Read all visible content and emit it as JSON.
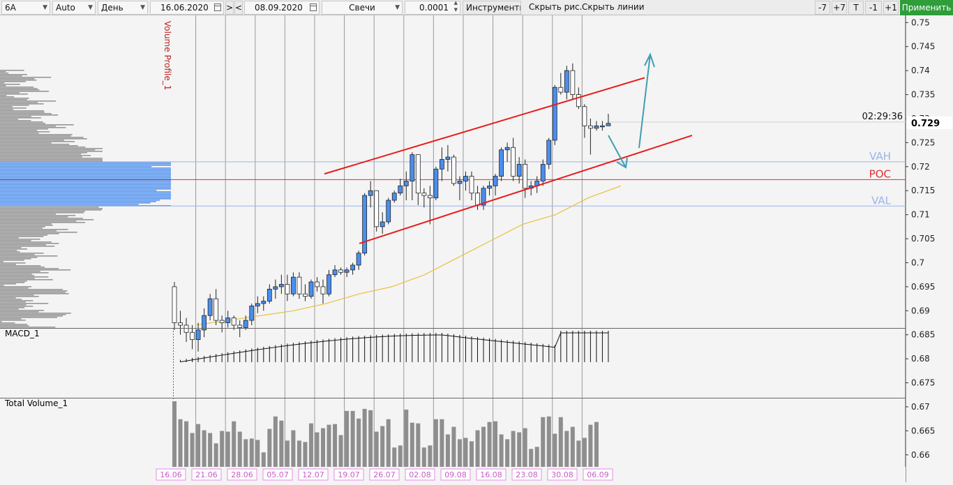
{
  "toolbar": {
    "symbol": "6A",
    "scale": "Auto",
    "period": "День",
    "date_from": "16.06.2020",
    "prev_btn": ">",
    "next_btn": "<",
    "date_to": "08.09.2020",
    "chart_style": "Свечи",
    "tick_size": "0.0001",
    "tools": "Инструменты",
    "hide_drawings": "Скрыть рис.",
    "hide_lines": "Скрыть линии",
    "btn_m7": "-7",
    "btn_p7": "+7",
    "btn_t": "T",
    "btn_m1": "-1",
    "btn_p1": "+1",
    "apply": "Применить"
  },
  "chart_data": {
    "type": "candlestick",
    "symbol": "6A",
    "timeframe": "День",
    "y_range": [
      0.6575,
      0.7515
    ],
    "y_ticks": [
      "0.75",
      "0.745",
      "0.74",
      "0.735",
      "0.73",
      "0.725",
      "0.72",
      "0.715",
      "0.71",
      "0.705",
      "0.7",
      "0.695",
      "0.69",
      "0.685",
      "0.68",
      "0.675",
      "0.67",
      "0.665",
      "0.66"
    ],
    "last_price": "0.729",
    "countdown": "02:29:36",
    "levels": {
      "VAH": "VAH",
      "POC": "POC",
      "VAL": "VAL"
    },
    "level_values": {
      "VAH": 0.721,
      "POC": 0.7173,
      "VAL": 0.7118
    },
    "x_labels": [
      "16.06",
      "21.06",
      "28.06",
      "05.07",
      "12.07",
      "19.07",
      "26.07",
      "02.08",
      "09.08",
      "16.08",
      "23.08",
      "30.08",
      "06.09"
    ],
    "ohlc": [
      [
        0.695,
        0.696,
        0.686,
        0.6875
      ],
      [
        0.6875,
        0.69,
        0.685,
        0.687
      ],
      [
        0.687,
        0.6885,
        0.6835,
        0.6855
      ],
      [
        0.6855,
        0.687,
        0.682,
        0.684
      ],
      [
        0.684,
        0.6875,
        0.6815,
        0.686
      ],
      [
        0.686,
        0.6905,
        0.6845,
        0.689
      ],
      [
        0.689,
        0.6935,
        0.688,
        0.6925
      ],
      [
        0.6925,
        0.6945,
        0.687,
        0.688
      ],
      [
        0.688,
        0.689,
        0.6855,
        0.6875
      ],
      [
        0.6875,
        0.69,
        0.6865,
        0.6885
      ],
      [
        0.6885,
        0.689,
        0.686,
        0.687
      ],
      [
        0.687,
        0.688,
        0.6845,
        0.6865
      ],
      [
        0.6865,
        0.689,
        0.686,
        0.688
      ],
      [
        0.688,
        0.6915,
        0.687,
        0.691
      ],
      [
        0.691,
        0.693,
        0.6895,
        0.6915
      ],
      [
        0.6915,
        0.693,
        0.69,
        0.692
      ],
      [
        0.692,
        0.6955,
        0.6915,
        0.6945
      ],
      [
        0.6945,
        0.6965,
        0.6925,
        0.695
      ],
      [
        0.695,
        0.6975,
        0.6935,
        0.6955
      ],
      [
        0.6955,
        0.6975,
        0.692,
        0.6935
      ],
      [
        0.6935,
        0.698,
        0.693,
        0.697
      ],
      [
        0.697,
        0.698,
        0.6925,
        0.6935
      ],
      [
        0.6935,
        0.6955,
        0.692,
        0.693
      ],
      [
        0.693,
        0.6965,
        0.6925,
        0.696
      ],
      [
        0.696,
        0.697,
        0.694,
        0.695
      ],
      [
        0.695,
        0.6965,
        0.6915,
        0.6935
      ],
      [
        0.6935,
        0.6985,
        0.693,
        0.6975
      ],
      [
        0.6975,
        0.6995,
        0.697,
        0.6985
      ],
      [
        0.6985,
        0.699,
        0.6975,
        0.698
      ],
      [
        0.698,
        0.699,
        0.697,
        0.6985
      ],
      [
        0.6985,
        0.7,
        0.6975,
        0.6995
      ],
      [
        0.6995,
        0.7025,
        0.6985,
        0.702
      ],
      [
        0.702,
        0.7145,
        0.7015,
        0.714
      ],
      [
        0.714,
        0.717,
        0.7115,
        0.715
      ],
      [
        0.715,
        0.715,
        0.7065,
        0.7075
      ],
      [
        0.7075,
        0.7105,
        0.706,
        0.7085
      ],
      [
        0.7085,
        0.7135,
        0.708,
        0.713
      ],
      [
        0.713,
        0.715,
        0.7125,
        0.7145
      ],
      [
        0.7145,
        0.7175,
        0.714,
        0.716
      ],
      [
        0.716,
        0.719,
        0.713,
        0.717
      ],
      [
        0.717,
        0.723,
        0.713,
        0.7225
      ],
      [
        0.7225,
        0.7225,
        0.712,
        0.7145
      ],
      [
        0.7145,
        0.7155,
        0.7115,
        0.714
      ],
      [
        0.714,
        0.716,
        0.708,
        0.7135
      ],
      [
        0.7135,
        0.72,
        0.713,
        0.7195
      ],
      [
        0.7195,
        0.724,
        0.717,
        0.7215
      ],
      [
        0.7215,
        0.7245,
        0.719,
        0.722
      ],
      [
        0.722,
        0.7225,
        0.716,
        0.7165
      ],
      [
        0.7165,
        0.718,
        0.713,
        0.717
      ],
      [
        0.717,
        0.719,
        0.715,
        0.718
      ],
      [
        0.718,
        0.719,
        0.713,
        0.7145
      ],
      [
        0.7145,
        0.716,
        0.711,
        0.712
      ],
      [
        0.712,
        0.716,
        0.711,
        0.7155
      ],
      [
        0.7155,
        0.717,
        0.714,
        0.716
      ],
      [
        0.716,
        0.7185,
        0.714,
        0.718
      ],
      [
        0.718,
        0.724,
        0.717,
        0.7235
      ],
      [
        0.7235,
        0.725,
        0.721,
        0.724
      ],
      [
        0.724,
        0.726,
        0.717,
        0.718
      ],
      [
        0.718,
        0.722,
        0.7165,
        0.7205
      ],
      [
        0.7205,
        0.7215,
        0.7135,
        0.7155
      ],
      [
        0.7155,
        0.717,
        0.714,
        0.716
      ],
      [
        0.716,
        0.718,
        0.7145,
        0.717
      ],
      [
        0.717,
        0.7215,
        0.716,
        0.7205
      ],
      [
        0.7205,
        0.726,
        0.7195,
        0.7255
      ],
      [
        0.7255,
        0.737,
        0.7245,
        0.7365
      ],
      [
        0.7365,
        0.7395,
        0.735,
        0.7355
      ],
      [
        0.7355,
        0.741,
        0.734,
        0.74
      ],
      [
        0.74,
        0.7415,
        0.734,
        0.735
      ],
      [
        0.735,
        0.7365,
        0.732,
        0.7325
      ],
      [
        0.7325,
        0.733,
        0.726,
        0.7285
      ],
      [
        0.7285,
        0.73,
        0.7225,
        0.728
      ],
      [
        0.728,
        0.7295,
        0.7275,
        0.7285
      ],
      [
        0.7285,
        0.7295,
        0.7275,
        0.7285
      ],
      [
        0.7285,
        0.731,
        0.7285,
        0.729
      ]
    ],
    "ma": {
      "color": "#e8c13c",
      "values": [
        0.687,
        0.688,
        0.689,
        0.69,
        0.6915,
        0.6935,
        0.695,
        0.6975,
        0.701,
        0.7045,
        0.708,
        0.71,
        0.7135,
        0.716
      ]
    },
    "channel_upper": {
      "color": "#e81c1c",
      "from": [
        0.7185
      ],
      "to": [
        0.7385
      ]
    },
    "channel_lower": {
      "color": "#e81c1c",
      "from": [
        0.704
      ],
      "to": [
        0.7265
      ]
    },
    "indicators": [
      {
        "name": "MACD_1"
      },
      {
        "name": "Total Volume_1",
        "values": [
          95,
          69,
          66,
          49,
          62,
          53,
          49,
          34,
          52,
          51,
          66,
          51,
          40,
          41,
          39,
          21,
          55,
          73,
          67,
          38,
          53,
          38,
          36,
          63,
          50,
          56,
          61,
          62,
          46,
          81,
          81,
          70,
          84,
          82,
          51,
          59,
          69,
          28,
          31,
          83,
          64,
          63,
          28,
          31,
          69,
          69,
          47,
          58,
          40,
          42,
          37,
          53,
          58,
          65,
          66,
          47,
          40,
          52,
          50,
          56,
          26,
          29,
          72,
          73,
          48,
          72,
          52,
          58,
          38,
          42,
          61,
          65
        ]
      },
      {
        "name": "Volume Profile_1"
      }
    ],
    "value_area_color": "#4a8ef0",
    "profile_color": "#8c8c8c"
  }
}
